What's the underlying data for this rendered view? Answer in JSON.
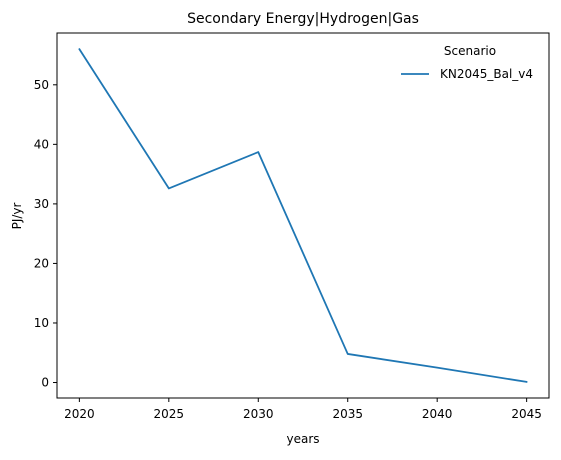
{
  "chart_data": {
    "type": "line",
    "title": "Secondary Energy|Hydrogen|Gas",
    "xlabel": "years",
    "ylabel": "PJ/yr",
    "x": [
      2020,
      2025,
      2030,
      2035,
      2040,
      2045
    ],
    "x_ticks": [
      2020,
      2025,
      2030,
      2035,
      2040,
      2045
    ],
    "y_ticks": [
      0,
      10,
      20,
      30,
      40,
      50
    ],
    "xlim": [
      2018.75,
      2046.25
    ],
    "ylim": [
      -2.6,
      58.7
    ],
    "grid": false,
    "legend": {
      "title": "Scenario",
      "placement": "top-right"
    },
    "series": [
      {
        "name": "KN2045_Bal_v4",
        "color": "#1f77b4",
        "values": [
          56.0,
          32.6,
          38.7,
          4.8,
          2.5,
          0.1
        ]
      }
    ]
  }
}
